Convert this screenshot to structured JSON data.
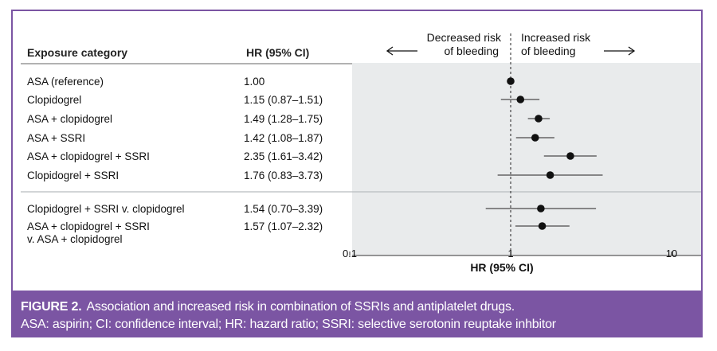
{
  "columns": {
    "category_header": "Exposure category",
    "hr_header": "HR (95% CI)"
  },
  "direction": {
    "left_line1": "Decreased risk",
    "left_line2": "of bleeding",
    "right_line1": "Increased risk",
    "right_line2": "of bleeding"
  },
  "caption": {
    "label": "FIGURE 2.",
    "title": "Association and increased risk in combination of SSRIs and antiplatelet drugs.",
    "abbreviations": "ASA: aspirin; CI: confidence interval; HR: hazard ratio; SSRI: selective serotonin reuptake inhbitor"
  },
  "colors": {
    "frame": "#7b55a3",
    "plot_bg": "#e9ebec",
    "marker": "#111111"
  },
  "chart_data": {
    "type": "scatter",
    "subtype": "forest-plot",
    "xlabel": "HR (95% CI)",
    "xscale": "log",
    "xlim": [
      0.1,
      10
    ],
    "xticks": [
      "0.1",
      "1",
      "10"
    ],
    "reference_line": 1,
    "grid": false,
    "rows": [
      {
        "label": [
          "ASA (reference)"
        ],
        "hr_text": "1.00",
        "hr": 1.0,
        "lo": null,
        "hi": null,
        "group": 1
      },
      {
        "label": [
          "Clopidogrel"
        ],
        "hr_text": "1.15 (0.87–1.51)",
        "hr": 1.15,
        "lo": 0.87,
        "hi": 1.51,
        "group": 1
      },
      {
        "label": [
          "ASA + clopidogrel"
        ],
        "hr_text": "1.49 (1.28–1.75)",
        "hr": 1.49,
        "lo": 1.28,
        "hi": 1.75,
        "group": 1
      },
      {
        "label": [
          "ASA + SSRI"
        ],
        "hr_text": "1.42 (1.08–1.87)",
        "hr": 1.42,
        "lo": 1.08,
        "hi": 1.87,
        "group": 1
      },
      {
        "label": [
          "ASA + clopidogrel + SSRI"
        ],
        "hr_text": "2.35 (1.61–3.42)",
        "hr": 2.35,
        "lo": 1.61,
        "hi": 3.42,
        "group": 1
      },
      {
        "label": [
          "Clopidogrel + SSRI"
        ],
        "hr_text": "1.76 (0.83–3.73)",
        "hr": 1.76,
        "lo": 0.83,
        "hi": 3.73,
        "group": 1
      },
      {
        "label": [
          "Clopidogrel + SSRI v. clopidogrel"
        ],
        "hr_text": "1.54 (0.70–3.39)",
        "hr": 1.54,
        "lo": 0.7,
        "hi": 3.39,
        "group": 2
      },
      {
        "label": [
          "ASA + clopidogrel + SSRI",
          "v. ASA + clopidogrel"
        ],
        "hr_text": "1.57 (1.07–2.32)",
        "hr": 1.57,
        "lo": 1.07,
        "hi": 2.32,
        "group": 2
      }
    ]
  }
}
